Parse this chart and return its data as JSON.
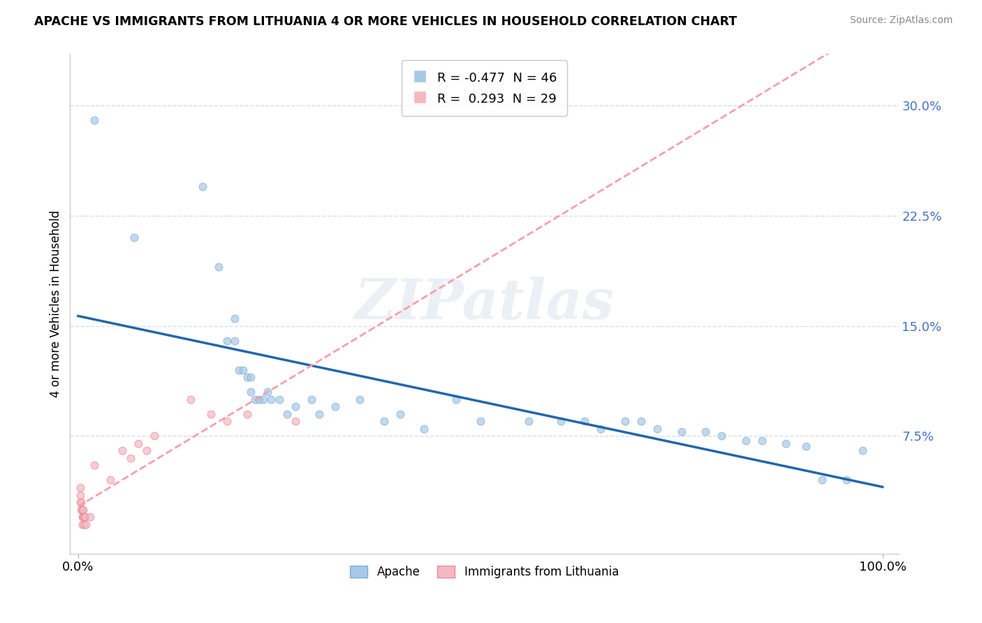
{
  "title": "APACHE VS IMMIGRANTS FROM LITHUANIA 4 OR MORE VEHICLES IN HOUSEHOLD CORRELATION CHART",
  "source": "Source: ZipAtlas.com",
  "ylabel": "4 or more Vehicles in Household",
  "watermark": "ZIPatlas",
  "legend_apache": "Apache",
  "legend_lithuania": "Immigrants from Lithuania",
  "R_apache": -0.477,
  "N_apache": 46,
  "R_lithuania": 0.293,
  "N_lithuania": 29,
  "xlim": [
    -0.01,
    1.02
  ],
  "ylim": [
    -0.005,
    0.335
  ],
  "ytick_values": [
    0.075,
    0.15,
    0.225,
    0.3
  ],
  "ytick_labels": [
    "7.5%",
    "15.0%",
    "22.5%",
    "30.0%"
  ],
  "background_color": "#ffffff",
  "color_apache": "#a8c8e8",
  "color_apache_edge": "#7bafd4",
  "color_lithuania": "#f4b8c0",
  "color_lithuania_edge": "#e88a98",
  "color_apache_line": "#2166ac",
  "color_lithuania_line": "#f4a0a8",
  "grid_color": "#d8dce8",
  "ytick_color": "#4472c4",
  "apache_x": [
    0.02,
    0.07,
    0.155,
    0.175,
    0.185,
    0.195,
    0.195,
    0.2,
    0.205,
    0.21,
    0.215,
    0.215,
    0.22,
    0.225,
    0.23,
    0.235,
    0.24,
    0.25,
    0.26,
    0.27,
    0.29,
    0.3,
    0.32,
    0.35,
    0.38,
    0.4,
    0.43,
    0.47,
    0.5,
    0.56,
    0.6,
    0.63,
    0.65,
    0.68,
    0.7,
    0.72,
    0.75,
    0.78,
    0.8,
    0.83,
    0.85,
    0.88,
    0.905,
    0.925,
    0.955,
    0.975
  ],
  "apache_y": [
    0.29,
    0.21,
    0.245,
    0.19,
    0.14,
    0.155,
    0.14,
    0.12,
    0.12,
    0.115,
    0.115,
    0.105,
    0.1,
    0.1,
    0.1,
    0.105,
    0.1,
    0.1,
    0.09,
    0.095,
    0.1,
    0.09,
    0.095,
    0.1,
    0.085,
    0.09,
    0.08,
    0.1,
    0.085,
    0.085,
    0.085,
    0.085,
    0.08,
    0.085,
    0.085,
    0.08,
    0.078,
    0.078,
    0.075,
    0.072,
    0.072,
    0.07,
    0.068,
    0.045,
    0.045,
    0.065
  ],
  "lithuania_x": [
    0.003,
    0.003,
    0.003,
    0.004,
    0.004,
    0.005,
    0.005,
    0.005,
    0.005,
    0.006,
    0.006,
    0.007,
    0.007,
    0.008,
    0.009,
    0.01,
    0.015,
    0.02,
    0.04,
    0.055,
    0.065,
    0.075,
    0.085,
    0.095,
    0.14,
    0.165,
    0.185,
    0.21,
    0.27
  ],
  "lithuania_y": [
    0.04,
    0.035,
    0.03,
    0.03,
    0.025,
    0.025,
    0.025,
    0.02,
    0.015,
    0.025,
    0.02,
    0.02,
    0.015,
    0.02,
    0.02,
    0.015,
    0.02,
    0.055,
    0.045,
    0.065,
    0.06,
    0.07,
    0.065,
    0.075,
    0.1,
    0.09,
    0.085,
    0.09,
    0.085
  ]
}
